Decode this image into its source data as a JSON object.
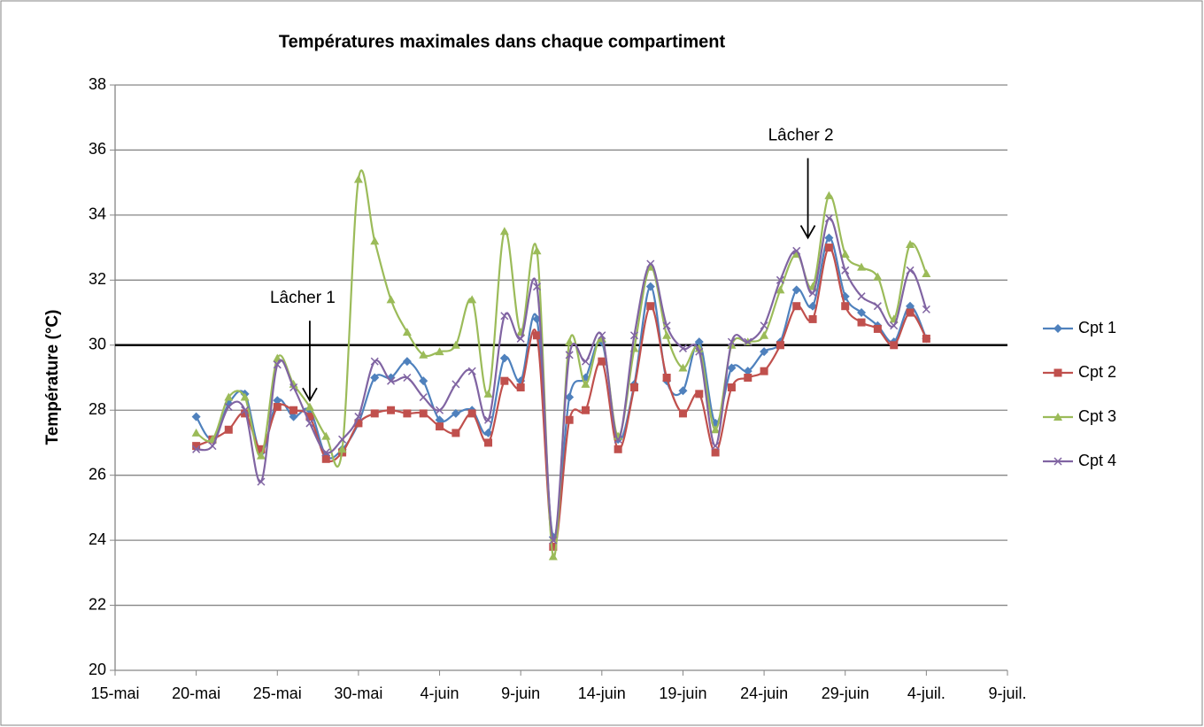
{
  "chart_data": {
    "type": "line",
    "title": "Températures maximales dans chaque compartiment",
    "y_label": "Température (°C)",
    "x": [
      140,
      141,
      142,
      143,
      144,
      145,
      146,
      147,
      148,
      149,
      150,
      151,
      152,
      153,
      154,
      155,
      156,
      157,
      158,
      159,
      160,
      161,
      162,
      163,
      164,
      165,
      166,
      167,
      168,
      169,
      170,
      171,
      172,
      173,
      174,
      175,
      176,
      177,
      178,
      179,
      180,
      181,
      182,
      183,
      184,
      185
    ],
    "series": [
      {
        "name": "Cpt 1",
        "color": "#4f81bd",
        "marker": "diamond",
        "values": [
          27.8,
          27.1,
          28.2,
          28.5,
          26.7,
          28.3,
          27.8,
          28.0,
          26.6,
          26.8,
          27.6,
          29.0,
          29.0,
          29.5,
          28.9,
          27.7,
          27.9,
          28.0,
          27.3,
          29.6,
          28.9,
          30.8,
          24.1,
          28.4,
          29.0,
          30.1,
          27.1,
          28.8,
          31.8,
          28.9,
          28.6,
          30.1,
          27.6,
          29.3,
          29.2,
          29.8,
          30.1,
          31.7,
          31.2,
          33.3,
          31.5,
          31.0,
          30.6,
          30.1,
          31.2,
          30.2
        ]
      },
      {
        "name": "Cpt 2",
        "color": "#c0504d",
        "marker": "square",
        "values": [
          26.9,
          27.1,
          27.4,
          27.9,
          26.8,
          28.1,
          28.0,
          27.8,
          26.5,
          26.7,
          27.6,
          27.9,
          28.0,
          27.9,
          27.9,
          27.5,
          27.3,
          27.9,
          27.0,
          28.9,
          28.7,
          30.3,
          23.8,
          27.7,
          28.0,
          29.5,
          26.8,
          28.7,
          31.2,
          29.0,
          27.9,
          28.5,
          26.7,
          28.7,
          29.0,
          29.2,
          30.0,
          31.2,
          30.8,
          33.0,
          31.2,
          30.7,
          30.5,
          30.0,
          31.0,
          30.2
        ]
      },
      {
        "name": "Cpt 3",
        "color": "#9bbb59",
        "marker": "triangle",
        "values": [
          27.3,
          27.1,
          28.4,
          28.4,
          26.6,
          29.6,
          28.8,
          28.1,
          27.2,
          26.8,
          35.1,
          33.2,
          31.4,
          30.4,
          29.7,
          29.8,
          30.0,
          31.4,
          28.5,
          33.5,
          30.4,
          32.9,
          23.5,
          30.1,
          28.8,
          30.2,
          27.2,
          29.9,
          32.4,
          30.3,
          29.3,
          29.9,
          27.4,
          30.0,
          30.1,
          30.3,
          31.7,
          32.8,
          31.8,
          34.6,
          32.8,
          32.4,
          32.1,
          30.8,
          33.1,
          32.2
        ]
      },
      {
        "name": "Cpt 4",
        "color": "#8064a2",
        "marker": "x",
        "values": [
          26.8,
          26.9,
          28.1,
          28.0,
          25.8,
          29.4,
          28.7,
          27.6,
          26.7,
          27.1,
          27.8,
          29.5,
          28.9,
          29.0,
          28.4,
          28.0,
          28.8,
          29.2,
          27.7,
          30.9,
          30.2,
          31.8,
          24.0,
          29.7,
          29.5,
          30.3,
          27.1,
          30.3,
          32.5,
          30.6,
          29.9,
          29.8,
          26.9,
          30.1,
          30.1,
          30.6,
          32.0,
          32.9,
          31.6,
          33.9,
          32.3,
          31.5,
          31.2,
          30.6,
          32.3,
          31.1
        ]
      }
    ],
    "xlim": [
      135,
      190
    ],
    "xticks": [
      {
        "value": 135,
        "label": "15-mai"
      },
      {
        "value": 140,
        "label": "20-mai"
      },
      {
        "value": 145,
        "label": "25-mai"
      },
      {
        "value": 150,
        "label": "30-mai"
      },
      {
        "value": 155,
        "label": "4-juin"
      },
      {
        "value": 160,
        "label": "9-juin"
      },
      {
        "value": 165,
        "label": "14-juin"
      },
      {
        "value": 170,
        "label": "19-juin"
      },
      {
        "value": 175,
        "label": "24-juin"
      },
      {
        "value": 180,
        "label": "29-juin"
      },
      {
        "value": 185,
        "label": "4-juil."
      },
      {
        "value": 190,
        "label": "9-juil."
      }
    ],
    "ylim": [
      20,
      38
    ],
    "yticks": [
      20,
      22,
      24,
      26,
      28,
      30,
      32,
      34,
      36,
      38
    ],
    "grid": true,
    "reference_line": 30,
    "legend": "right",
    "annotations": [
      {
        "text": "Lâcher 1",
        "x": 147,
        "y": 28.3
      },
      {
        "text": "Lâcher 2",
        "x": 177.7,
        "y": 33.3
      }
    ]
  }
}
